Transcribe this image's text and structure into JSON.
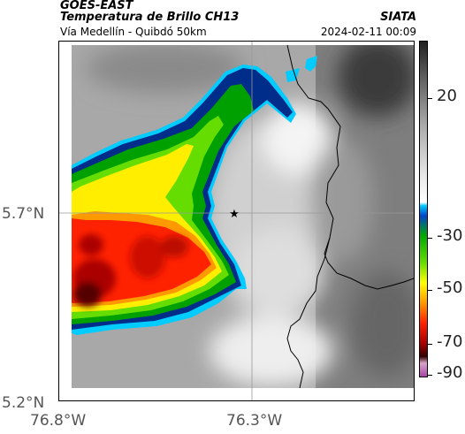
{
  "header": {
    "satellite": "GOES-EAST",
    "product": "Temperatura de Brillo CH13",
    "area": "Vía Medellín - Quibdó 50km",
    "organization": "SIATA",
    "timestamp": "2024-02-11 00:09"
  },
  "map": {
    "lat_labels": [
      "5.7°N",
      "5.2°N"
    ],
    "lon_labels": [
      "76.8°W",
      "76.3°W"
    ],
    "marker": "station-star",
    "colors": {
      "graticule": "#999999",
      "coastline": "#000000",
      "marker": "#000000"
    }
  },
  "colorbar": {
    "labels": [
      "20",
      "-30",
      "-50",
      "-70",
      "-90"
    ],
    "stops": [
      "#222222",
      "#666666",
      "#aaaaaa",
      "#e8e8e8",
      "#ffffff",
      "#00ccff",
      "#0044cc",
      "#00aa00",
      "#66dd00",
      "#ffff00",
      "#ff9900",
      "#ff2200",
      "#aa0000",
      "#330000",
      "#d9a3c9",
      "#aa44aa"
    ]
  }
}
